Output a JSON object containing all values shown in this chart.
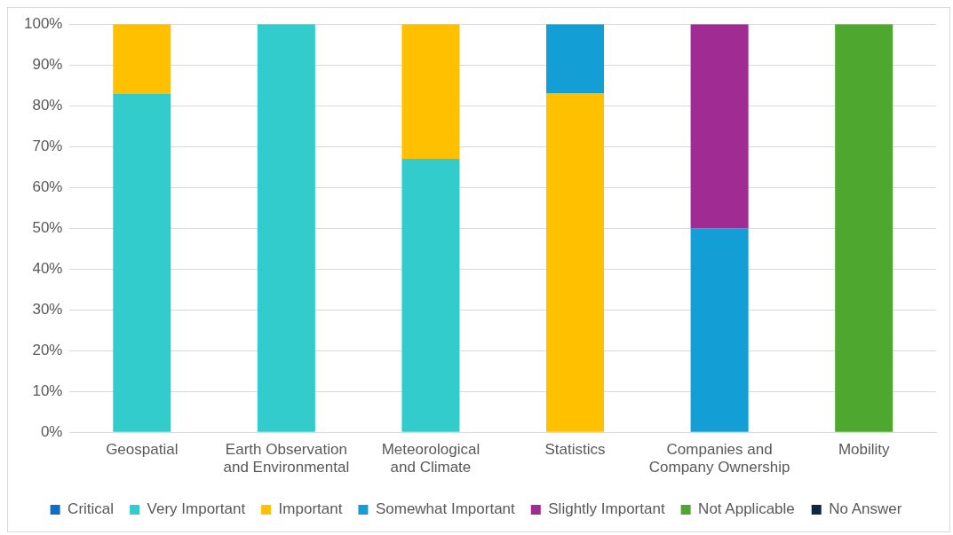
{
  "chart_data": {
    "type": "bar",
    "stacked": true,
    "categories": [
      "Geospatial",
      "Earth Observation and Environmental",
      "Meteorological and Climate",
      "Statistics",
      "Companies and Company Ownership",
      "Mobility"
    ],
    "series": [
      {
        "name": "Critical",
        "color": "#0f6fc6",
        "values": [
          0,
          0,
          0,
          0,
          0,
          0
        ]
      },
      {
        "name": "Very Important",
        "color": "#33cccc",
        "values": [
          83,
          100,
          67,
          0,
          0,
          0
        ]
      },
      {
        "name": "Important",
        "color": "#ffc000",
        "values": [
          17,
          0,
          33,
          83,
          0,
          0
        ]
      },
      {
        "name": "Somewhat Important",
        "color": "#139fd6",
        "values": [
          0,
          0,
          0,
          17,
          50,
          0
        ]
      },
      {
        "name": "Slightly Important",
        "color": "#a02b93",
        "values": [
          0,
          0,
          0,
          0,
          50,
          0
        ]
      },
      {
        "name": "Not Applicable",
        "color": "#4ea72e",
        "values": [
          0,
          0,
          0,
          0,
          0,
          100
        ]
      },
      {
        "name": "No Answer",
        "color": "#0e2841",
        "values": [
          0,
          0,
          0,
          0,
          0,
          0
        ]
      }
    ],
    "ylim": [
      0,
      100
    ],
    "yticks": [
      {
        "value": 0,
        "label": "0%"
      },
      {
        "value": 10,
        "label": "10%"
      },
      {
        "value": 20,
        "label": "20%"
      },
      {
        "value": 30,
        "label": "30%"
      },
      {
        "value": 40,
        "label": "40%"
      },
      {
        "value": 50,
        "label": "50%"
      },
      {
        "value": 60,
        "label": "60%"
      },
      {
        "value": 70,
        "label": "70%"
      },
      {
        "value": 80,
        "label": "80%"
      },
      {
        "value": 90,
        "label": "90%"
      },
      {
        "value": 100,
        "label": "100%"
      }
    ],
    "grid": "y",
    "legend": "bottom"
  }
}
